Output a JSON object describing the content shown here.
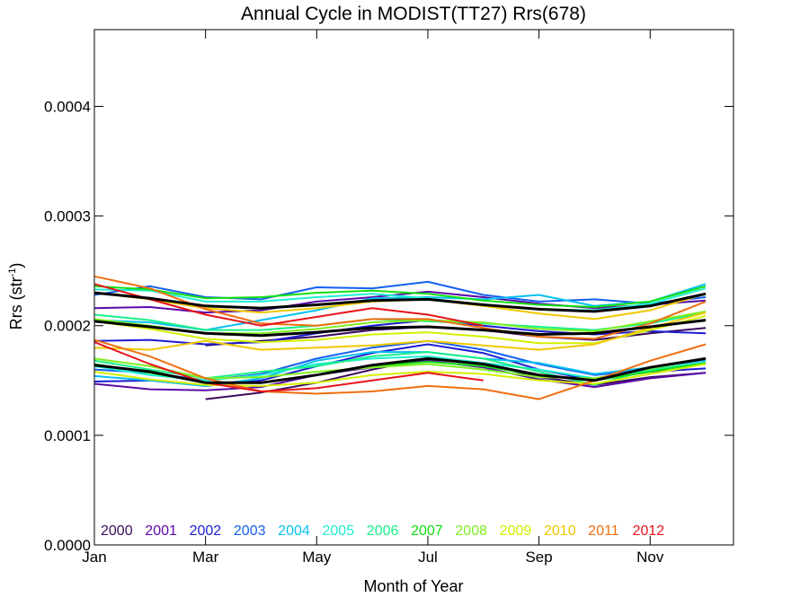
{
  "chart_data": {
    "type": "line",
    "title": "Annual Cycle in MODIST(TT27) Rrs(678)",
    "xlabel": "Month of Year",
    "ylabel_base": "Rrs (str",
    "ylabel_sup": "-1",
    "ylabel_end": ")",
    "xlim": [
      1,
      12.5
    ],
    "ylim": [
      0,
      0.00047
    ],
    "x_ticks": [
      {
        "x": 1,
        "label": "Jan"
      },
      {
        "x": 3,
        "label": "Mar"
      },
      {
        "x": 5,
        "label": "May"
      },
      {
        "x": 7,
        "label": "Jul"
      },
      {
        "x": 9,
        "label": "Sep"
      },
      {
        "x": 11,
        "label": "Nov"
      }
    ],
    "y_ticks": [
      {
        "y": 0,
        "label": "0.0000"
      },
      {
        "y": 0.0001,
        "label": "0.0001"
      },
      {
        "y": 0.0002,
        "label": "0.0002"
      },
      {
        "y": 0.0003,
        "label": "0.0003"
      },
      {
        "y": 0.0004,
        "label": "0.0004"
      }
    ],
    "series": [
      {
        "name": "2000",
        "color": "#3a0a5e",
        "x": [
          3,
          4,
          5,
          6,
          7,
          8,
          9,
          10,
          11,
          12
        ],
        "lines": [
          [
            0.000182,
            0.000186,
            0.00019,
            0.000196,
            0.000199,
            0.000196,
            0.00019,
            0.000187,
            0.000193,
            0.000198
          ],
          [
            0.000133,
            0.000139,
            0.000148,
            0.00016,
            0.00017,
            0.000165,
            0.000153,
            0.000146,
            0.000153,
            0.000157
          ]
        ]
      },
      {
        "name": "2001",
        "color": "#5a0aa8",
        "x": [
          1,
          2,
          3,
          4,
          5,
          6,
          7,
          8,
          9,
          10,
          11,
          12
        ],
        "lines": [
          [
            0.000216,
            0.000217,
            0.000212,
            0.000214,
            0.000222,
            0.000226,
            0.000231,
            0.000226,
            0.00022,
            0.000216,
            0.000219,
            0.000223
          ],
          [
            0.000147,
            0.000142,
            0.000141,
            0.000144,
            0.000155,
            0.000162,
            0.000168,
            0.000162,
            0.000151,
            0.000144,
            0.000152,
            0.000157
          ]
        ]
      },
      {
        "name": "2002",
        "color": "#1c1cd2",
        "x": [
          1,
          2,
          3,
          4,
          5,
          6,
          7,
          8,
          9,
          10,
          11,
          12
        ],
        "lines": [
          [
            0.000186,
            0.000187,
            0.000183,
            0.000185,
            0.000193,
            0.0002,
            0.000205,
            0.0002,
            0.000195,
            0.000192,
            0.000195,
            0.000193
          ],
          [
            0.000149,
            0.00015,
            0.000145,
            0.00015,
            0.000163,
            0.000175,
            0.000183,
            0.000175,
            0.00016,
            0.00015,
            0.000158,
            0.000161
          ]
        ]
      },
      {
        "name": "2003",
        "color": "#1560f0",
        "x": [
          1,
          2,
          3,
          4,
          5,
          6,
          7,
          8,
          9,
          10,
          11,
          12
        ],
        "lines": [
          [
            0.000228,
            0.000236,
            0.000226,
            0.000224,
            0.000235,
            0.000234,
            0.00024,
            0.000228,
            0.000222,
            0.000224,
            0.00022,
            0.000226
          ],
          [
            0.00016,
            0.000157,
            0.00015,
            0.000156,
            0.00017,
            0.00018,
            0.000186,
            0.000178,
            0.000165,
            0.000155,
            0.00016,
            0.000165
          ]
        ]
      },
      {
        "name": "2004",
        "color": "#08c0f0",
        "x": [
          1,
          2,
          3,
          4,
          5,
          6,
          7,
          8,
          9,
          10,
          11,
          12
        ],
        "lines": [
          [
            0.000205,
            0.000203,
            0.000196,
            0.000205,
            0.000214,
            0.000225,
            0.000226,
            0.000224,
            0.000228,
            0.000218,
            0.000222,
            0.000238
          ],
          [
            0.000154,
            0.00015,
            0.000145,
            0.000152,
            0.000168,
            0.000176,
            0.000176,
            0.00017,
            0.000166,
            0.000156,
            0.000162,
            0.000168
          ]
        ]
      },
      {
        "name": "2005",
        "color": "#20f0d0",
        "x": [
          1,
          2,
          3,
          4,
          5,
          6,
          7,
          8,
          9,
          10,
          11,
          12
        ],
        "lines": [
          [
            0.000233,
            0.000232,
            0.000222,
            0.000222,
            0.000226,
            0.000229,
            0.000225,
            0.000219,
            0.000215,
            0.000214,
            0.00022,
            0.000234
          ],
          [
            0.000163,
            0.000155,
            0.00015,
            0.000155,
            0.000165,
            0.00017,
            0.000172,
            0.000166,
            0.00016,
            0.000152,
            0.00016,
            0.000166
          ]
        ]
      },
      {
        "name": "2006",
        "color": "#18f08a",
        "x": [
          1,
          2,
          3,
          4,
          5,
          6,
          7,
          8,
          9,
          10,
          11,
          12
        ],
        "lines": [
          [
            0.00021,
            0.000205,
            0.000196,
            0.000196,
            0.0002,
            0.000206,
            0.000204,
            0.000202,
            0.000199,
            0.000196,
            0.000202,
            0.000212
          ],
          [
            0.000168,
            0.00016,
            0.000152,
            0.000158,
            0.000163,
            0.000172,
            0.000176,
            0.00017,
            0.000158,
            0.000146,
            0.00016,
            0.000166
          ]
        ]
      },
      {
        "name": "2007",
        "color": "#12e012",
        "x": [
          1,
          2,
          3,
          4,
          5,
          6,
          7,
          8,
          9,
          10,
          11,
          12
        ],
        "lines": [
          [
            0.000236,
            0.000233,
            0.000225,
            0.000226,
            0.00023,
            0.000232,
            0.000229,
            0.000223,
            0.000219,
            0.000217,
            0.000222,
            0.000236
          ],
          [
            0.000165,
            0.000157,
            0.000148,
            0.000148,
            0.000155,
            0.000163,
            0.000167,
            0.000163,
            0.000155,
            0.00015,
            0.000158,
            0.000166
          ]
        ]
      },
      {
        "name": "2008",
        "color": "#7ef020",
        "x": [
          1,
          2,
          3,
          4,
          5,
          6,
          7,
          8,
          9,
          10,
          11,
          12
        ],
        "lines": [
          [
            0.000206,
            0.0002,
            0.000193,
            0.000193,
            0.000197,
            0.000203,
            0.000205,
            0.000203,
            0.000197,
            0.000195,
            0.000204,
            0.000213
          ],
          [
            0.00017,
            0.000163,
            0.000152,
            0.000153,
            0.000158,
            0.000162,
            0.000165,
            0.00016,
            0.000153,
            0.000152,
            0.000161,
            0.00017
          ]
        ]
      },
      {
        "name": "2009",
        "color": "#d4f000",
        "x": [
          1,
          2,
          3,
          4,
          5,
          6,
          7,
          8,
          9,
          10,
          11,
          12
        ],
        "lines": [
          [
            0.000204,
            0.000197,
            0.000188,
            0.000185,
            0.000187,
            0.000192,
            0.000194,
            0.00019,
            0.000184,
            0.000184,
            0.000196,
            0.000209
          ],
          [
            0.000158,
            0.000151,
            0.000146,
            0.000145,
            0.000148,
            0.000155,
            0.000158,
            0.000156,
            0.00015,
            0.000147,
            0.000156,
            0.000165
          ]
        ]
      },
      {
        "name": "2010",
        "color": "#f0c800",
        "x": [
          1,
          2,
          3,
          4,
          5,
          6,
          7,
          8,
          9,
          10,
          11,
          12
        ],
        "lines": [
          [
            0.00023,
            0.000224,
            0.000216,
            0.000212,
            0.000216,
            0.000222,
            0.000224,
            0.000218,
            0.000211,
            0.000206,
            0.000214,
            0.000229
          ],
          [
            0.00018,
            0.000178,
            0.000186,
            0.000178,
            0.00018,
            0.000182,
            0.000186,
            0.000182,
            0.000178,
            0.000183,
            0.000198,
            0.000212
          ]
        ]
      },
      {
        "name": "2011",
        "color": "#f06e10",
        "x": [
          1,
          2,
          3,
          4,
          5,
          6,
          7,
          8,
          9,
          10,
          11,
          12
        ],
        "lines": [
          [
            0.000245,
            0.000234,
            0.000215,
            0.000202,
            0.0002,
            0.000206,
            0.000206,
            0.000198,
            0.00019,
            0.000188,
            0.000202,
            0.000222
          ],
          [
            0.000187,
            0.000172,
            0.000152,
            0.00014,
            0.000138,
            0.00014,
            0.000145,
            0.000142,
            0.000133,
            0.00015,
            0.000168,
            0.000183
          ]
        ]
      },
      {
        "name": "2012",
        "color": "#e8141a",
        "x": [
          1,
          2,
          3,
          4,
          5,
          6,
          7,
          8
        ],
        "lines": [
          [
            0.000238,
            0.000224,
            0.00021,
            0.0002,
            0.000208,
            0.000216,
            0.00021,
            0.0002
          ],
          [
            0.000185,
            0.000165,
            0.000148,
            0.00014,
            0.000143,
            0.00015,
            0.000157,
            0.00015
          ]
        ]
      }
    ],
    "climatology": {
      "color": "#000000",
      "x": [
        1,
        2,
        3,
        4,
        5,
        6,
        7,
        8,
        9,
        10,
        11,
        12
      ],
      "lines": [
        [
          0.00023,
          0.000225,
          0.000218,
          0.000216,
          0.000219,
          0.000223,
          0.000224,
          0.000219,
          0.000215,
          0.000213,
          0.000218,
          0.000229
        ],
        [
          0.000204,
          0.000199,
          0.000193,
          0.000191,
          0.000194,
          0.000198,
          0.000199,
          0.000196,
          0.000192,
          0.000193,
          0.000199,
          0.000205
        ],
        [
          0.000164,
          0.000158,
          0.000148,
          0.000148,
          0.000155,
          0.000164,
          0.00017,
          0.000165,
          0.000155,
          0.00015,
          0.000162,
          0.00017
        ]
      ]
    }
  }
}
